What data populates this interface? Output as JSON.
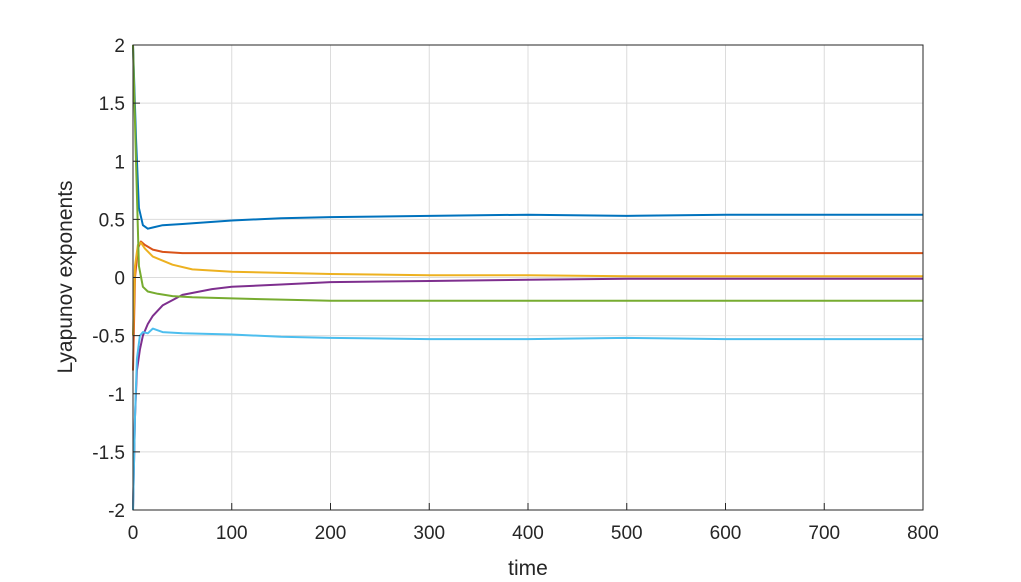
{
  "chart_data": {
    "type": "line",
    "title": "",
    "xlabel": "time",
    "ylabel": "Lyapunov exponents",
    "xlim": [
      0,
      800
    ],
    "ylim": [
      -2,
      2
    ],
    "xticks": [
      0,
      100,
      200,
      300,
      400,
      500,
      600,
      700,
      800
    ],
    "yticks": [
      -2,
      -1.5,
      -1,
      -0.5,
      0,
      0.5,
      1,
      1.5,
      2
    ],
    "xtick_labels": [
      "0",
      "100",
      "200",
      "300",
      "400",
      "500",
      "600",
      "700",
      "800"
    ],
    "ytick_labels": [
      "-2",
      "-1.5",
      "-1",
      "-0.5",
      "0",
      "0.5",
      "1",
      "1.5",
      "2"
    ],
    "grid": true,
    "legend": "none",
    "series": [
      {
        "color": "#0072BD",
        "x": [
          0,
          3,
          6,
          10,
          15,
          20,
          30,
          50,
          100,
          150,
          200,
          300,
          400,
          500,
          600,
          700,
          800
        ],
        "y": [
          2.0,
          1.2,
          0.6,
          0.45,
          0.42,
          0.43,
          0.45,
          0.46,
          0.49,
          0.51,
          0.52,
          0.53,
          0.54,
          0.53,
          0.54,
          0.54,
          0.54
        ]
      },
      {
        "color": "#D95319",
        "x": [
          0,
          2,
          5,
          8,
          12,
          20,
          30,
          50,
          100,
          200,
          400,
          600,
          800
        ],
        "y": [
          -0.8,
          0.0,
          0.25,
          0.31,
          0.28,
          0.24,
          0.22,
          0.21,
          0.21,
          0.21,
          0.21,
          0.21,
          0.21
        ]
      },
      {
        "color": "#EDB120",
        "x": [
          0,
          2,
          5,
          8,
          12,
          20,
          40,
          60,
          100,
          200,
          300,
          400,
          500,
          600,
          700,
          800
        ],
        "y": [
          -0.5,
          0.1,
          0.28,
          0.3,
          0.25,
          0.18,
          0.11,
          0.07,
          0.05,
          0.03,
          0.02,
          0.02,
          0.01,
          0.01,
          0.01,
          0.01
        ]
      },
      {
        "color": "#7E2F8E",
        "x": [
          0,
          2,
          4,
          7,
          10,
          15,
          20,
          30,
          50,
          80,
          100,
          150,
          200,
          300,
          400,
          500,
          600,
          700,
          800
        ],
        "y": [
          -2.0,
          -1.2,
          -0.8,
          -0.62,
          -0.5,
          -0.4,
          -0.33,
          -0.24,
          -0.15,
          -0.1,
          -0.08,
          -0.06,
          -0.04,
          -0.03,
          -0.02,
          -0.01,
          -0.01,
          -0.01,
          -0.01
        ]
      },
      {
        "color": "#77AC30",
        "x": [
          0,
          3,
          6,
          10,
          15,
          25,
          40,
          60,
          100,
          150,
          200,
          300,
          400,
          500,
          600,
          700,
          800
        ],
        "y": [
          2.0,
          1.0,
          0.1,
          -0.08,
          -0.12,
          -0.14,
          -0.16,
          -0.17,
          -0.18,
          -0.19,
          -0.2,
          -0.2,
          -0.2,
          -0.2,
          -0.2,
          -0.2,
          -0.2
        ]
      },
      {
        "color": "#4DBEEE",
        "x": [
          0,
          2,
          4,
          7,
          10,
          15,
          20,
          30,
          50,
          100,
          150,
          200,
          300,
          400,
          500,
          600,
          700,
          800
        ],
        "y": [
          -2.0,
          -1.2,
          -0.7,
          -0.5,
          -0.47,
          -0.48,
          -0.44,
          -0.47,
          -0.48,
          -0.49,
          -0.51,
          -0.52,
          -0.53,
          -0.53,
          -0.52,
          -0.53,
          -0.53,
          -0.53
        ]
      }
    ]
  }
}
